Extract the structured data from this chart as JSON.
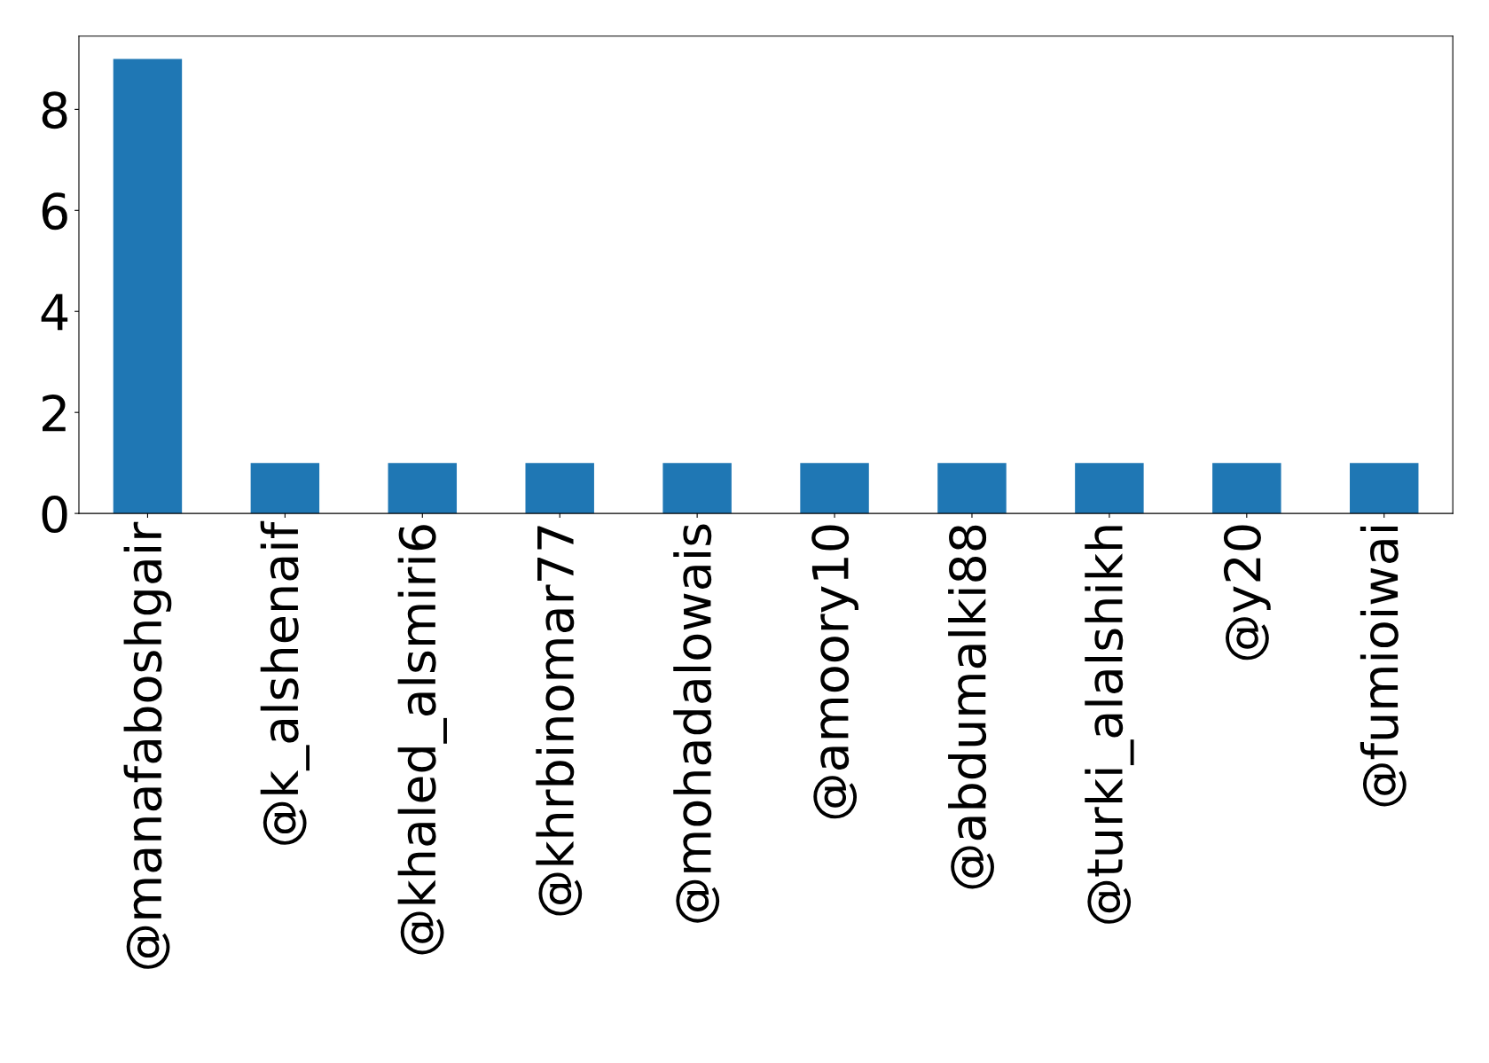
{
  "chart_data": {
    "type": "bar",
    "categories": [
      "@manafaboshgair",
      "@k_alshenaif",
      "@khaled_alsmiri6",
      "@khrbinomar77",
      "@mohadalowais",
      "@amoory10",
      "@abdumalki88",
      "@turki_alalshikh",
      "@y20",
      "@fumioiwai"
    ],
    "values": [
      9,
      1,
      1,
      1,
      1,
      1,
      1,
      1,
      1,
      1
    ],
    "color": "#1f77b4",
    "ylim": [
      0,
      9.45
    ],
    "yticks": [
      0,
      2,
      4,
      6,
      8
    ],
    "grid": false,
    "legend": false
  }
}
